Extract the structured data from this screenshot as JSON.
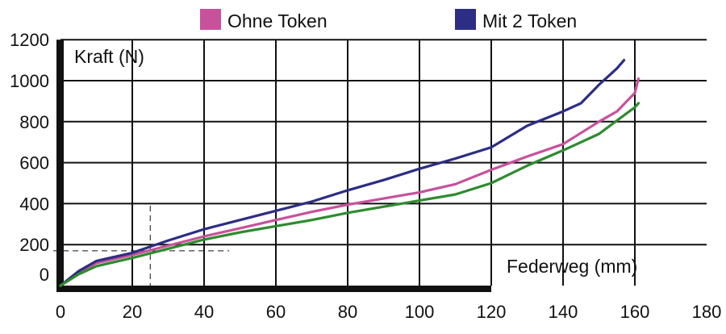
{
  "chart_data": {
    "type": "line",
    "xlabel": "Federweg (mm)",
    "ylabel": "Kraft (N)",
    "xlim": [
      0,
      180
    ],
    "ylim": [
      0,
      1200
    ],
    "x_ticks": [
      "0",
      "20",
      "40",
      "60",
      "80",
      "100",
      "120",
      "140",
      "160",
      "180"
    ],
    "y_ticks": [
      "0",
      "200",
      "400",
      "600",
      "800",
      "1000",
      "1200"
    ],
    "grid": true,
    "legend_position": "top",
    "series": [
      {
        "name": "Ohne Token",
        "color": "#c8519c",
        "points": [
          [
            0,
            0
          ],
          [
            5,
            65
          ],
          [
            10,
            110
          ],
          [
            20,
            150
          ],
          [
            30,
            195
          ],
          [
            40,
            240
          ],
          [
            50,
            280
          ],
          [
            60,
            320
          ],
          [
            70,
            360
          ],
          [
            80,
            395
          ],
          [
            90,
            425
          ],
          [
            100,
            455
          ],
          [
            110,
            495
          ],
          [
            120,
            565
          ],
          [
            130,
            630
          ],
          [
            140,
            690
          ],
          [
            150,
            800
          ],
          [
            155,
            850
          ],
          [
            160,
            940
          ],
          [
            161,
            1010
          ]
        ]
      },
      {
        "name": "Mit 2 Token",
        "color": "#2c2d84",
        "points": [
          [
            0,
            0
          ],
          [
            5,
            70
          ],
          [
            10,
            120
          ],
          [
            20,
            160
          ],
          [
            30,
            220
          ],
          [
            40,
            275
          ],
          [
            50,
            320
          ],
          [
            60,
            365
          ],
          [
            70,
            410
          ],
          [
            80,
            465
          ],
          [
            90,
            515
          ],
          [
            100,
            570
          ],
          [
            110,
            620
          ],
          [
            120,
            675
          ],
          [
            130,
            780
          ],
          [
            140,
            850
          ],
          [
            145,
            890
          ],
          [
            150,
            980
          ],
          [
            155,
            1060
          ],
          [
            157,
            1100
          ]
        ]
      },
      {
        "name": "",
        "color": "#2e8b2e",
        "points": [
          [
            0,
            0
          ],
          [
            5,
            55
          ],
          [
            10,
            95
          ],
          [
            20,
            135
          ],
          [
            30,
            180
          ],
          [
            40,
            225
          ],
          [
            50,
            260
          ],
          [
            60,
            290
          ],
          [
            70,
            320
          ],
          [
            80,
            355
          ],
          [
            90,
            385
          ],
          [
            100,
            415
          ],
          [
            110,
            445
          ],
          [
            120,
            500
          ],
          [
            130,
            585
          ],
          [
            140,
            660
          ],
          [
            150,
            740
          ],
          [
            160,
            870
          ],
          [
            161,
            890
          ]
        ]
      }
    ],
    "marker_point": [
      25,
      170
    ]
  }
}
